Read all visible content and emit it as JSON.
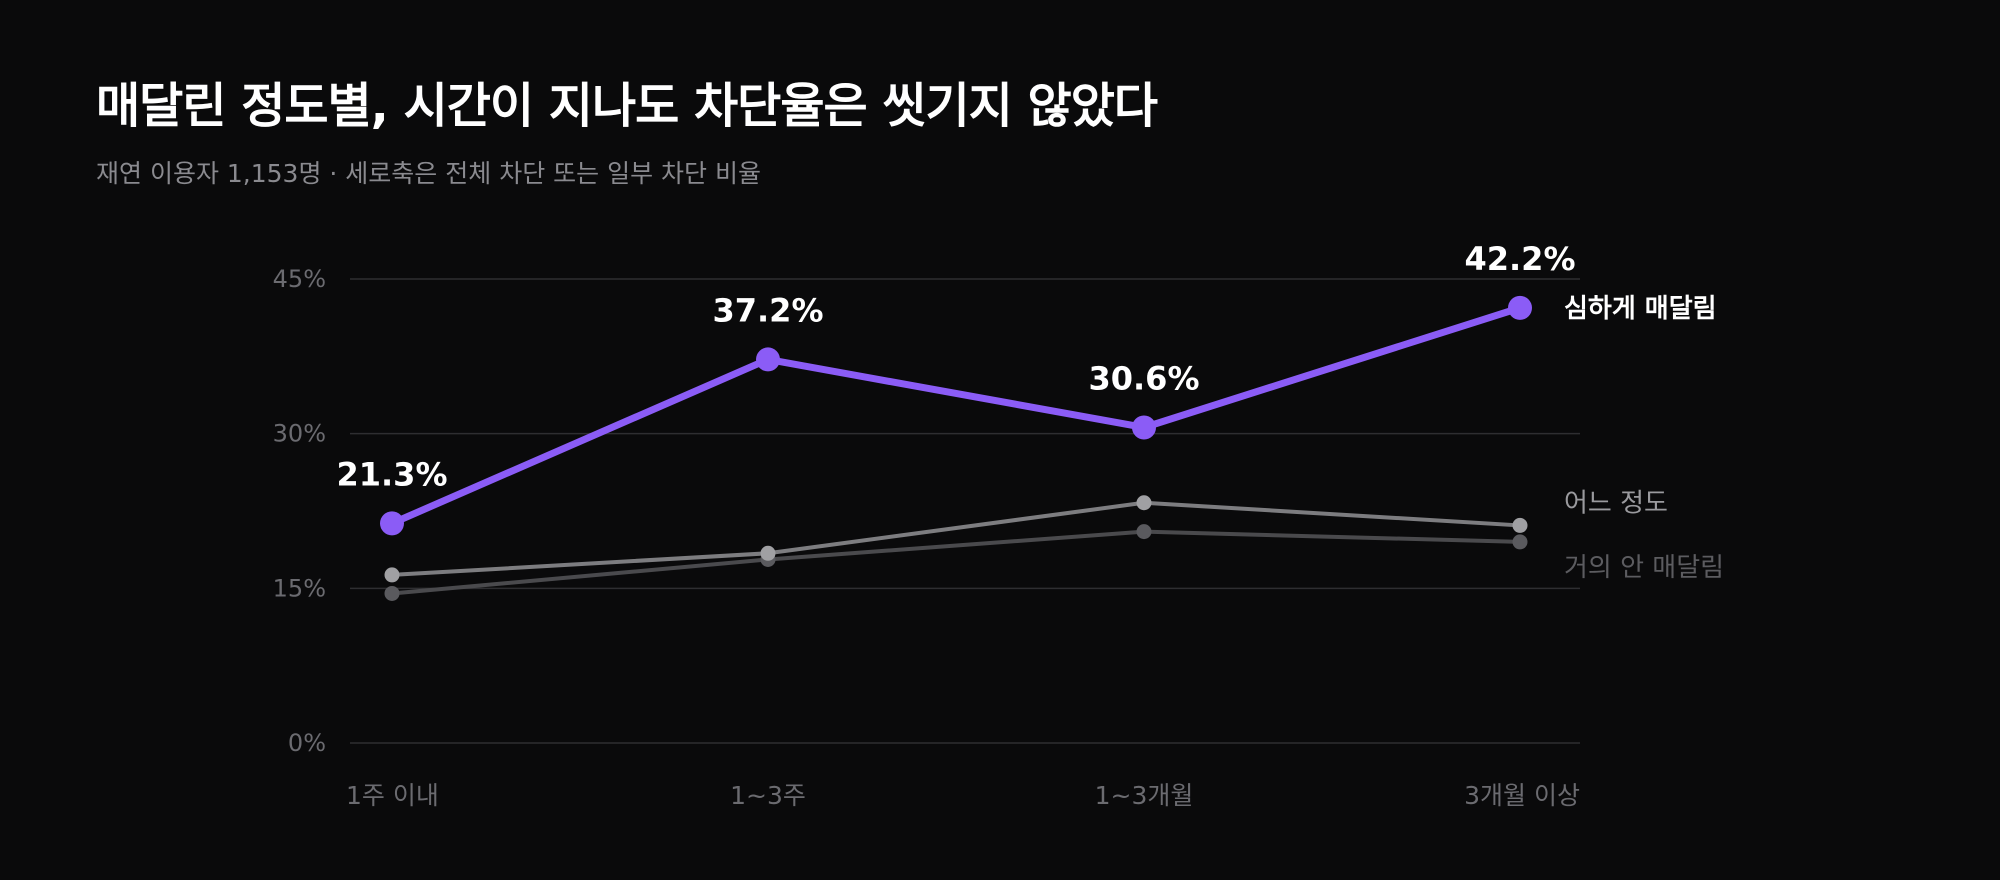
{
  "title": "매달린 정도별, 시간이 지나도 차단율은 씻기지 않았다",
  "subtitle": "재연 이용자 1,153명 · 세로축은 전체 차단 또는 일부 차단 비율",
  "chart_data": {
    "type": "line",
    "categories": [
      "1주 이내",
      "1~3주",
      "1~3개월",
      "3개월 이상"
    ],
    "ylim": [
      0,
      45
    ],
    "yticks": [
      0,
      15,
      30,
      45
    ],
    "ytick_labels": [
      "0%",
      "15%",
      "30%",
      "45%"
    ],
    "grid": true,
    "legend": "inline-right",
    "series": [
      {
        "name": "거의 안 매달림",
        "values": [
          14.5,
          17.8,
          20.5,
          19.5
        ],
        "color": "#4a4a4d",
        "point_color": "#5a5a5e",
        "label_color": "#5c5c60",
        "show_value_labels": false
      },
      {
        "name": "어느 정도",
        "values": [
          16.3,
          18.4,
          23.3,
          21.1
        ],
        "color": "#7d7d80",
        "point_color": "#a0a0a3",
        "label_color": "#9a9a9e",
        "show_value_labels": false
      },
      {
        "name": "심하게 매달림",
        "values": [
          21.3,
          37.2,
          30.6,
          42.2
        ],
        "value_labels": [
          "21.3%",
          "37.2%",
          "30.6%",
          "42.2%"
        ],
        "color": "#8b5cf6",
        "point_color": "#8b5cf6",
        "label_color": "#ffffff",
        "show_value_labels": true
      }
    ]
  }
}
